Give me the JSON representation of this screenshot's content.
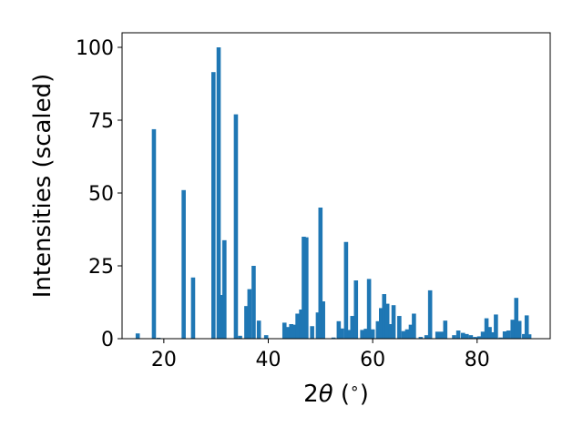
{
  "chart_data": {
    "type": "bar",
    "xlabel_parts": {
      "pre": "2",
      "theta": "θ",
      "post": " (",
      "degree": "∘",
      "close": ")"
    },
    "ylabel": "Intensities (scaled)",
    "xlim": [
      12,
      94
    ],
    "ylim": [
      0,
      105
    ],
    "xticks": [
      20,
      40,
      60,
      80
    ],
    "yticks": [
      0,
      25,
      50,
      75,
      100
    ],
    "bar_width": 0.8,
    "bar_color": "#1f77b4",
    "grid": false,
    "legend": "none",
    "points": [
      [
        15.0,
        1.8
      ],
      [
        18.1,
        71.9
      ],
      [
        19.0,
        0.3
      ],
      [
        23.8,
        51.0
      ],
      [
        25.6,
        21.0
      ],
      [
        29.5,
        91.5
      ],
      [
        30.5,
        100.0
      ],
      [
        31.0,
        15.0
      ],
      [
        31.6,
        33.8
      ],
      [
        33.8,
        77.0
      ],
      [
        34.6,
        1.0
      ],
      [
        35.8,
        11.2
      ],
      [
        36.4,
        17.0
      ],
      [
        37.2,
        25.0
      ],
      [
        38.2,
        6.2
      ],
      [
        39.6,
        1.2
      ],
      [
        43.1,
        5.5
      ],
      [
        43.8,
        4.0
      ],
      [
        44.4,
        5.0
      ],
      [
        45.0,
        4.8
      ],
      [
        45.6,
        8.6
      ],
      [
        46.3,
        10.0
      ],
      [
        46.8,
        35.0
      ],
      [
        47.3,
        34.8
      ],
      [
        48.4,
        4.3
      ],
      [
        49.5,
        9.0
      ],
      [
        50.0,
        45.0
      ],
      [
        50.5,
        12.8
      ],
      [
        52.5,
        0.4
      ],
      [
        53.5,
        6.0
      ],
      [
        54.1,
        3.5
      ],
      [
        54.9,
        33.2
      ],
      [
        55.5,
        3.0
      ],
      [
        56.1,
        7.8
      ],
      [
        56.8,
        20.0
      ],
      [
        58.0,
        3.0
      ],
      [
        58.7,
        3.4
      ],
      [
        59.3,
        20.5
      ],
      [
        60.0,
        3.2
      ],
      [
        61.0,
        6.0
      ],
      [
        61.6,
        10.5
      ],
      [
        62.2,
        15.3
      ],
      [
        62.8,
        12.0
      ],
      [
        63.4,
        5.0
      ],
      [
        64.0,
        11.5
      ],
      [
        65.1,
        7.8
      ],
      [
        65.9,
        2.6
      ],
      [
        66.6,
        3.2
      ],
      [
        67.3,
        4.8
      ],
      [
        67.9,
        8.6
      ],
      [
        69.2,
        0.6
      ],
      [
        70.3,
        1.2
      ],
      [
        71.0,
        16.6
      ],
      [
        72.4,
        2.4
      ],
      [
        73.2,
        2.4
      ],
      [
        73.9,
        6.2
      ],
      [
        75.6,
        1.2
      ],
      [
        76.4,
        2.8
      ],
      [
        77.3,
        2.0
      ],
      [
        78.0,
        1.6
      ],
      [
        78.8,
        1.2
      ],
      [
        79.6,
        0.6
      ],
      [
        80.4,
        0.8
      ],
      [
        81.1,
        2.4
      ],
      [
        81.8,
        7.0
      ],
      [
        82.4,
        4.0
      ],
      [
        83.0,
        2.2
      ],
      [
        83.6,
        8.3
      ],
      [
        84.5,
        0.4
      ],
      [
        85.3,
        2.5
      ],
      [
        86.0,
        2.8
      ],
      [
        86.8,
        6.5
      ],
      [
        87.5,
        14.0
      ],
      [
        88.1,
        6.1
      ],
      [
        89.0,
        1.6
      ],
      [
        89.5,
        8.0
      ],
      [
        90.0,
        1.5
      ]
    ]
  }
}
